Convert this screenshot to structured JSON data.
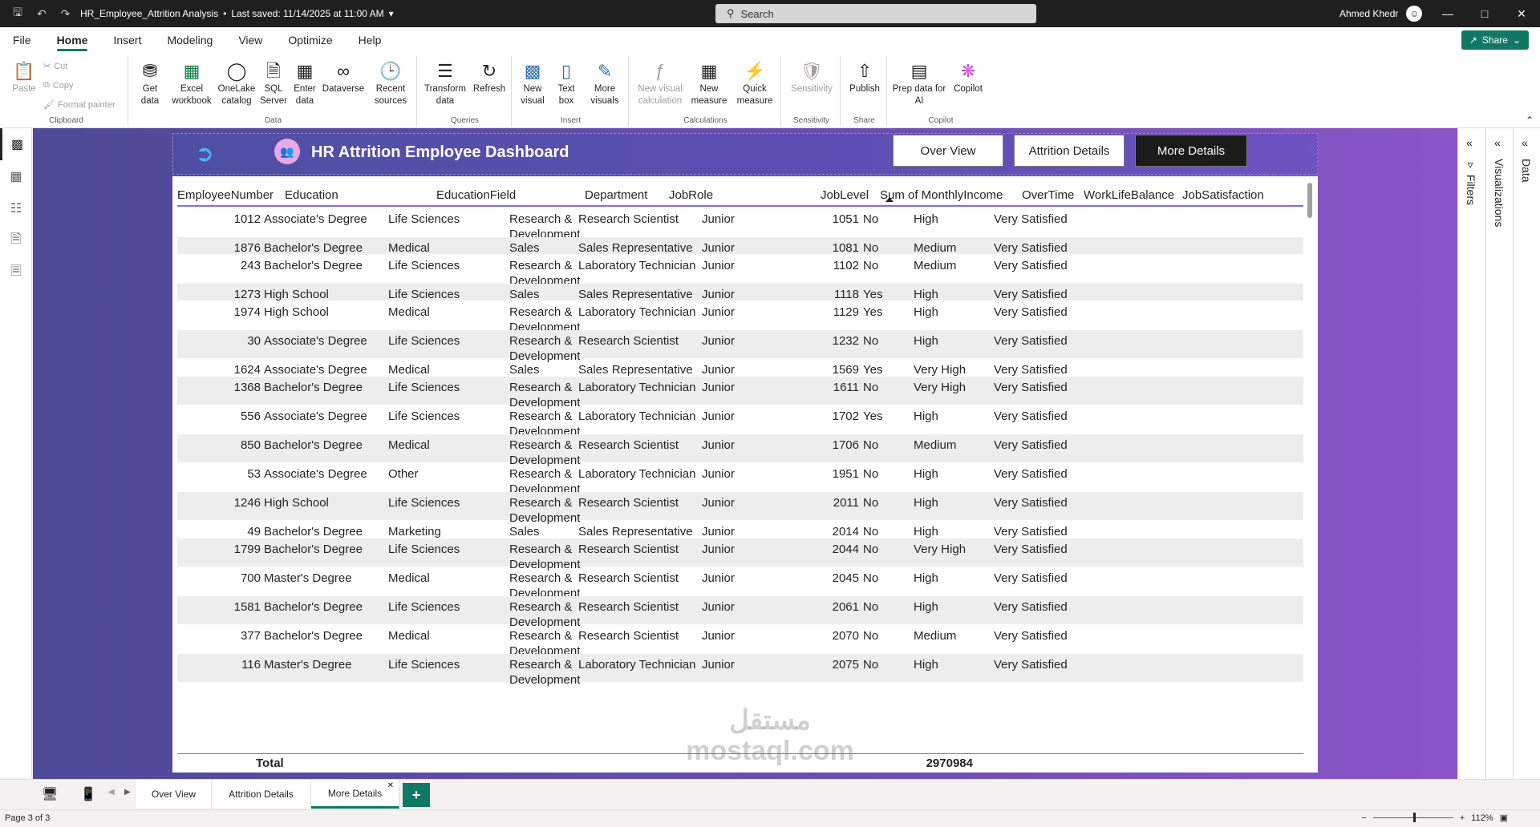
{
  "window": {
    "doc_title": "HR_Employee_Attrition Analysis",
    "saved": "Last saved: 11/14/2025 at 11:00 AM",
    "search_placeholder": "Search",
    "user": "Ahmed Khedr"
  },
  "menu": {
    "tabs": [
      "File",
      "Home",
      "Insert",
      "Modeling",
      "View",
      "Optimize",
      "Help"
    ],
    "active": "Home",
    "share_label": "Share"
  },
  "ribbon": {
    "clipboard": {
      "paste": "Paste",
      "cut": "Cut",
      "copy": "Copy",
      "format_painter": "Format painter",
      "label": "Clipboard"
    },
    "data": {
      "get_data": "Get data",
      "excel": "Excel workbook",
      "onelake": "OneLake catalog",
      "sql": "SQL Server",
      "enter": "Enter data",
      "dataverse": "Dataverse",
      "recent": "Recent sources",
      "label": "Data"
    },
    "queries": {
      "transform": "Transform data",
      "refresh": "Refresh",
      "label": "Queries"
    },
    "insert": {
      "new_visual": "New visual",
      "text_box": "Text box",
      "more_visuals": "More visuals",
      "label": "Insert"
    },
    "calculations": {
      "new_visual_calc": "New visual calculation",
      "new_measure": "New measure",
      "quick_measure": "Quick measure",
      "label": "Calculations"
    },
    "sensitivity": {
      "sensitivity": "Sensitivity",
      "label": "Sensitivity"
    },
    "share": {
      "publish": "Publish",
      "label": "Share"
    },
    "copilot": {
      "prep": "Prep data for AI",
      "copilot": "Copilot",
      "label": "Copilot"
    }
  },
  "report": {
    "title": "HR Attrition Employee Dashboard",
    "nav": [
      "Over View",
      "Attrition Details",
      "More Details"
    ],
    "active_nav": "More Details"
  },
  "table": {
    "columns": [
      "EmployeeNumber",
      "Education",
      "EducationField",
      "Department",
      "JobRole",
      "JobLevel",
      "Sum of MonthlyIncome",
      "OverTime",
      "WorkLifeBalance",
      "JobSatisfaction"
    ],
    "rows": [
      [
        "1012",
        "Associate's Degree",
        "Life Sciences",
        "Research & Development",
        "Research Scientist",
        "Junior",
        "1051",
        "No",
        "High",
        "Very Satisfied"
      ],
      [
        "1876",
        "Bachelor's Degree",
        "Medical",
        "Sales",
        "Sales Representative",
        "Junior",
        "1081",
        "No",
        "Medium",
        "Very Satisfied"
      ],
      [
        "243",
        "Bachelor's Degree",
        "Life Sciences",
        "Research & Development",
        "Laboratory Technician",
        "Junior",
        "1102",
        "No",
        "Medium",
        "Very Satisfied"
      ],
      [
        "1273",
        "High School",
        "Life Sciences",
        "Sales",
        "Sales Representative",
        "Junior",
        "1118",
        "Yes",
        "High",
        "Very Satisfied"
      ],
      [
        "1974",
        "High School",
        "Medical",
        "Research & Development",
        "Laboratory Technician",
        "Junior",
        "1129",
        "Yes",
        "High",
        "Very Satisfied"
      ],
      [
        "30",
        "Associate's Degree",
        "Life Sciences",
        "Research & Development",
        "Research Scientist",
        "Junior",
        "1232",
        "No",
        "High",
        "Very Satisfied"
      ],
      [
        "1624",
        "Associate's Degree",
        "Medical",
        "Sales",
        "Sales Representative",
        "Junior",
        "1569",
        "Yes",
        "Very High",
        "Very Satisfied"
      ],
      [
        "1368",
        "Bachelor's Degree",
        "Life Sciences",
        "Research & Development",
        "Laboratory Technician",
        "Junior",
        "1611",
        "No",
        "Very High",
        "Very Satisfied"
      ],
      [
        "556",
        "Associate's Degree",
        "Life Sciences",
        "Research & Development",
        "Laboratory Technician",
        "Junior",
        "1702",
        "Yes",
        "High",
        "Very Satisfied"
      ],
      [
        "850",
        "Bachelor's Degree",
        "Medical",
        "Research & Development",
        "Research Scientist",
        "Junior",
        "1706",
        "No",
        "Medium",
        "Very Satisfied"
      ],
      [
        "53",
        "Associate's Degree",
        "Other",
        "Research & Development",
        "Laboratory Technician",
        "Junior",
        "1951",
        "No",
        "High",
        "Very Satisfied"
      ],
      [
        "1246",
        "High School",
        "Life Sciences",
        "Research & Development",
        "Research Scientist",
        "Junior",
        "2011",
        "No",
        "High",
        "Very Satisfied"
      ],
      [
        "49",
        "Bachelor's Degree",
        "Marketing",
        "Sales",
        "Sales Representative",
        "Junior",
        "2014",
        "No",
        "High",
        "Very Satisfied"
      ],
      [
        "1799",
        "Bachelor's Degree",
        "Life Sciences",
        "Research & Development",
        "Research Scientist",
        "Junior",
        "2044",
        "No",
        "Very High",
        "Very Satisfied"
      ],
      [
        "700",
        "Master's Degree",
        "Medical",
        "Research & Development",
        "Research Scientist",
        "Junior",
        "2045",
        "No",
        "High",
        "Very Satisfied"
      ],
      [
        "1581",
        "Bachelor's Degree",
        "Life Sciences",
        "Research & Development",
        "Research Scientist",
        "Junior",
        "2061",
        "No",
        "High",
        "Very Satisfied"
      ],
      [
        "377",
        "Bachelor's Degree",
        "Medical",
        "Research & Development",
        "Research Scientist",
        "Junior",
        "2070",
        "No",
        "Medium",
        "Very Satisfied"
      ],
      [
        "116",
        "Master's Degree",
        "Life Sciences",
        "Research & Development",
        "Laboratory Technician",
        "Junior",
        "2075",
        "No",
        "High",
        "Very Satisfied"
      ]
    ],
    "total_label": "Total",
    "total_value": "2970984"
  },
  "panes": {
    "filters": "Filters",
    "visualizations": "Visualizations",
    "data": "Data"
  },
  "pages": {
    "tabs": [
      "Over View",
      "Attrition Details",
      "More Details"
    ],
    "active": "More Details"
  },
  "status": {
    "page": "Page 3 of 3",
    "zoom": "112%"
  },
  "watermark": {
    "arabic": "مستقل",
    "latin": "mostaql.com"
  }
}
